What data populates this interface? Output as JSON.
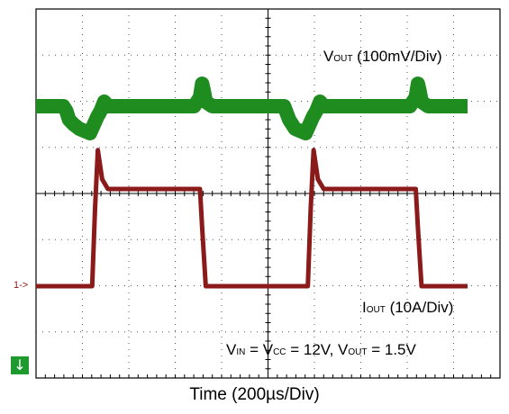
{
  "chart_data": {
    "type": "line",
    "title": "",
    "xlabel": "Time (200µs/Div)",
    "ylabel": "",
    "x_divisions": 10,
    "y_divisions": 8,
    "grid": true,
    "series": [
      {
        "name": "VOUT (100mV/Div)",
        "label_main": "V",
        "label_sub": "OUT",
        "label_rest": " (100mV/Div)",
        "color": "#1e8c1e",
        "units": "mV",
        "x": [
          0,
          0.38,
          0.42,
          0.46,
          0.52,
          0.6,
          0.75,
          0.85,
          0.9,
          0.95,
          1.0,
          1.1,
          1.25,
          1.4,
          1.6,
          1.8,
          2.0,
          2.2,
          2.28,
          2.31,
          2.33,
          2.36,
          2.45,
          2.55,
          2.65,
          2.8,
          3.0,
          3.2,
          3.4,
          3.45,
          3.52,
          3.6,
          3.75,
          3.85,
          3.9,
          3.95,
          4.0,
          4.1,
          4.25,
          4.4,
          4.6,
          4.8,
          5.0,
          5.2,
          5.28,
          5.31,
          5.33,
          5.36,
          5.45,
          5.55,
          5.65,
          5.8,
          6.0
        ],
        "y": [
          0,
          0,
          -5,
          -15,
          -20,
          -25,
          -30,
          -12,
          -5,
          5,
          0,
          0,
          0,
          0,
          0,
          0,
          0,
          0,
          10,
          25,
          18,
          5,
          0,
          0,
          0,
          0,
          0,
          0,
          0,
          0,
          -15,
          -25,
          -30,
          -12,
          -5,
          5,
          0,
          0,
          0,
          0,
          0,
          0,
          0,
          0,
          10,
          25,
          18,
          5,
          0,
          0,
          0,
          0,
          0
        ],
        "y_plot_x": "divisions from left graticule edge"
      },
      {
        "name": "IOUT (10A/Div)",
        "label_main": "I",
        "label_sub": "OUT",
        "label_rest": " (10A/Div)",
        "color": "#8b1a1a",
        "units": "A",
        "x": [
          0,
          0.78,
          0.82,
          0.86,
          0.92,
          1.0,
          1.2,
          1.8,
          2.0,
          2.28,
          2.31,
          2.36,
          2.45,
          2.6,
          3.0,
          3.5,
          3.78,
          3.82,
          3.86,
          3.92,
          4.0,
          4.2,
          4.8,
          5.0,
          5.28,
          5.31,
          5.36,
          5.45,
          5.6,
          6.0
        ],
        "y": [
          0,
          0,
          8,
          14,
          11,
          10,
          10,
          10,
          10,
          10,
          6,
          0,
          0,
          0,
          0,
          0,
          0,
          8,
          14,
          11,
          10,
          10,
          10,
          10,
          10,
          6,
          0,
          0,
          0,
          0
        ],
        "y_plot_x": "divisions from left graticule edge"
      }
    ],
    "ch1_ground_label": "1->",
    "ground_marker": "↓",
    "annotation": {
      "vin": "V",
      "vin_sub": "IN",
      "eq1": " = V",
      "vcc_sub": "CC",
      "eq2": " = 12V, V",
      "vout_sub": "OUT",
      "eq3": " = 1.5V"
    }
  }
}
